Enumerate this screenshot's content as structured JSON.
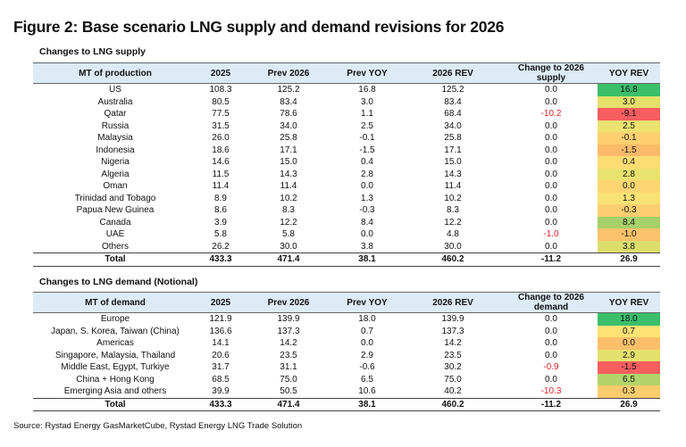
{
  "title": "Figure 2: Base scenario LNG supply and demand revisions for 2026",
  "supply": {
    "label": "Changes to LNG supply",
    "headers": [
      "MT of production",
      "2025",
      "Prev 2026",
      "Prev YOY",
      "2026 REV",
      "Change to 2026 supply",
      "YOY REV"
    ],
    "rows": [
      {
        "name": "US",
        "y2025": "108.3",
        "prev2026": "125.2",
        "prevyoy": "16.8",
        "rev2026": "125.2",
        "change": "0.0",
        "yoyrev": "16.8",
        "color": "#3cbf6b"
      },
      {
        "name": "Australia",
        "y2025": "80.5",
        "prev2026": "83.4",
        "prevyoy": "3.0",
        "rev2026": "83.4",
        "change": "0.0",
        "yoyrev": "3.0",
        "color": "#e4e06a"
      },
      {
        "name": "Qatar",
        "y2025": "77.5",
        "prev2026": "78.6",
        "prevyoy": "1.1",
        "rev2026": "68.4",
        "change": "-10.2",
        "yoyrev": "-9.1",
        "color": "#f65e5f"
      },
      {
        "name": "Russia",
        "y2025": "31.5",
        "prev2026": "34.0",
        "prevyoy": "2.5",
        "rev2026": "34.0",
        "change": "0.0",
        "yoyrev": "2.5",
        "color": "#ece270"
      },
      {
        "name": "Malaysia",
        "y2025": "26.0",
        "prev2026": "25.8",
        "prevyoy": "-0.1",
        "rev2026": "25.8",
        "change": "0.0",
        "yoyrev": "-0.1",
        "color": "#fed070"
      },
      {
        "name": "Indonesia",
        "y2025": "18.6",
        "prev2026": "17.1",
        "prevyoy": "-1.5",
        "rev2026": "17.1",
        "change": "0.0",
        "yoyrev": "-1.5",
        "color": "#fbbb6a"
      },
      {
        "name": "Nigeria",
        "y2025": "14.6",
        "prev2026": "15.0",
        "prevyoy": "0.4",
        "rev2026": "15.0",
        "change": "0.0",
        "yoyrev": "0.4",
        "color": "#fddc74"
      },
      {
        "name": "Algeria",
        "y2025": "11.5",
        "prev2026": "14.3",
        "prevyoy": "2.8",
        "rev2026": "14.3",
        "change": "0.0",
        "yoyrev": "2.8",
        "color": "#e9e26e"
      },
      {
        "name": "Oman",
        "y2025": "11.4",
        "prev2026": "11.4",
        "prevyoy": "0.0",
        "rev2026": "11.4",
        "change": "0.0",
        "yoyrev": "0.0",
        "color": "#fdd672"
      },
      {
        "name": "Trinidad and Tobago",
        "y2025": "8.9",
        "prev2026": "10.2",
        "prevyoy": "1.3",
        "rev2026": "10.2",
        "change": "0.0",
        "yoyrev": "1.3",
        "color": "#f8e274"
      },
      {
        "name": "Papua New Guinea",
        "y2025": "8.6",
        "prev2026": "8.3",
        "prevyoy": "-0.3",
        "rev2026": "8.3",
        "change": "0.0",
        "yoyrev": "-0.3",
        "color": "#fdce70"
      },
      {
        "name": "Canada",
        "y2025": "3.9",
        "prev2026": "12.2",
        "prevyoy": "8.4",
        "rev2026": "12.2",
        "change": "0.0",
        "yoyrev": "8.4",
        "color": "#a6d06a"
      },
      {
        "name": "UAE",
        "y2025": "5.8",
        "prev2026": "5.8",
        "prevyoy": "0.0",
        "rev2026": "4.8",
        "change": "-1.0",
        "yoyrev": "-1.0",
        "color": "#fcc26c"
      },
      {
        "name": "Others",
        "y2025": "26.2",
        "prev2026": "30.0",
        "prevyoy": "3.8",
        "rev2026": "30.0",
        "change": "0.0",
        "yoyrev": "3.8",
        "color": "#dcde6c"
      }
    ],
    "total": {
      "name": "Total",
      "y2025": "433.3",
      "prev2026": "471.4",
      "prevyoy": "38.1",
      "rev2026": "460.2",
      "change": "-11.2",
      "yoyrev": "26.9"
    }
  },
  "demand": {
    "label": "Changes to LNG demand (Notional)",
    "headers": [
      "MT of demand",
      "2025",
      "Prev 2026",
      "Prev YOY",
      "2026 REV",
      "Change to 2026 demand",
      "YOY REV"
    ],
    "rows": [
      {
        "name": "Europe",
        "y2025": "121.9",
        "prev2026": "139.9",
        "prevyoy": "18.0",
        "rev2026": "139.9",
        "change": "0.0",
        "yoyrev": "18.0",
        "color": "#3cbf6b"
      },
      {
        "name": "Japan, S. Korea, Taiwan (China)",
        "y2025": "136.6",
        "prev2026": "137.3",
        "prevyoy": "0.7",
        "rev2026": "137.3",
        "change": "0.0",
        "yoyrev": "0.7",
        "color": "#fde274"
      },
      {
        "name": "Americas",
        "y2025": "14.1",
        "prev2026": "14.2",
        "prevyoy": "0.0",
        "rev2026": "14.2",
        "change": "0.0",
        "yoyrev": "0.0",
        "color": "#fbbf6a"
      },
      {
        "name": "Singapore, Malaysia, Thailand",
        "y2025": "20.6",
        "prev2026": "23.5",
        "prevyoy": "2.9",
        "rev2026": "23.5",
        "change": "0.0",
        "yoyrev": "2.9",
        "color": "#e4e06c"
      },
      {
        "name": "Middle East, Egypt, Turkiye",
        "y2025": "31.7",
        "prev2026": "31.1",
        "prevyoy": "-0.6",
        "rev2026": "30.2",
        "change": "-0.9",
        "yoyrev": "-1.5",
        "color": "#f65e5f"
      },
      {
        "name": "China + Hong Kong",
        "y2025": "68.5",
        "prev2026": "75.0",
        "prevyoy": "6.5",
        "rev2026": "75.0",
        "change": "0.0",
        "yoyrev": "6.5",
        "color": "#b2d46a"
      },
      {
        "name": "Emerging Asia and others",
        "y2025": "39.9",
        "prev2026": "50.5",
        "prevyoy": "10.6",
        "rev2026": "40.2",
        "change": "-10.3",
        "yoyrev": "0.3",
        "color": "#fccc6e"
      }
    ],
    "total": {
      "name": "Total",
      "y2025": "433.3",
      "prev2026": "471.4",
      "prevyoy": "38.1",
      "rev2026": "460.2",
      "change": "-11.2",
      "yoyrev": "26.9"
    }
  },
  "source": "Source: Rystad Energy GasMarketCube, Rystad Energy LNG Trade Solution"
}
